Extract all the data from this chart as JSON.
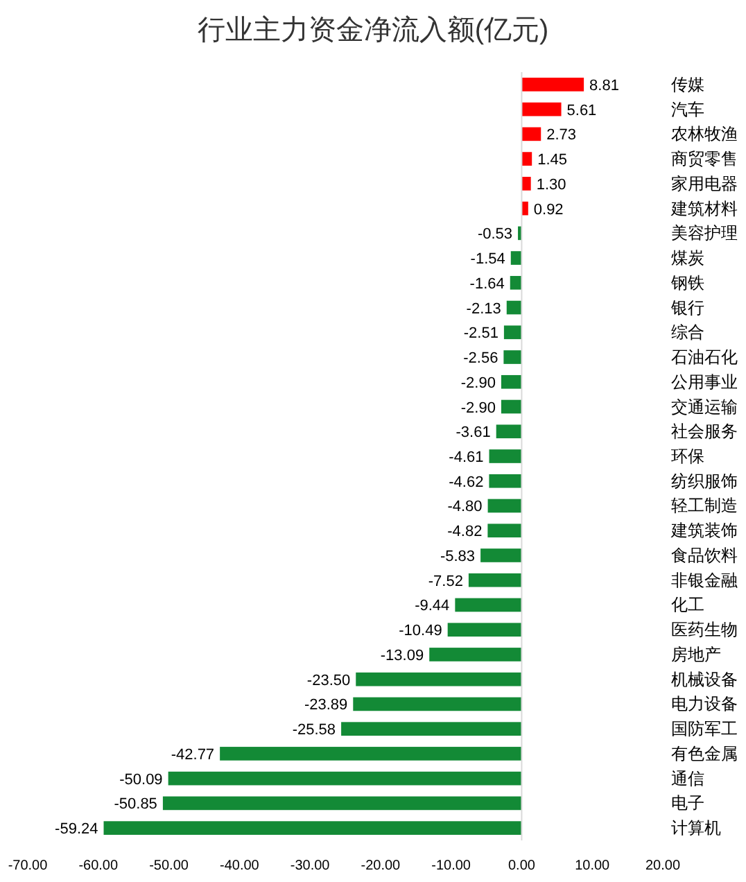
{
  "chart_data": {
    "type": "bar",
    "orientation": "horizontal",
    "title": "行业主力资金净流入额(亿元)",
    "categories": [
      "传媒",
      "汽车",
      "农林牧渔",
      "商贸零售",
      "家用电器",
      "建筑材料",
      "美容护理",
      "煤炭",
      "钢铁",
      "银行",
      "综合",
      "石油石化",
      "公用事业",
      "交通运输",
      "社会服务",
      "环保",
      "纺织服饰",
      "轻工制造",
      "建筑装饰",
      "食品饮料",
      "非银金融",
      "化工",
      "医药生物",
      "房地产",
      "机械设备",
      "电力设备",
      "国防军工",
      "有色金属",
      "通信",
      "电子",
      "计算机"
    ],
    "values": [
      8.81,
      5.61,
      2.73,
      1.45,
      1.3,
      0.92,
      -0.53,
      -1.54,
      -1.64,
      -2.13,
      -2.51,
      -2.56,
      -2.9,
      -2.9,
      -3.61,
      -4.61,
      -4.62,
      -4.8,
      -4.82,
      -5.83,
      -7.52,
      -9.44,
      -10.49,
      -13.09,
      -23.5,
      -23.89,
      -25.58,
      -42.77,
      -50.09,
      -50.85,
      -59.24
    ],
    "value_labels": [
      "8.81",
      "5.61",
      "2.73",
      "1.45",
      "1.30",
      "0.92",
      "-0.53",
      "-1.54",
      "-1.64",
      "-2.13",
      "-2.51",
      "-2.56",
      "-2.90",
      "-2.90",
      "-3.61",
      "-4.61",
      "-4.62",
      "-4.80",
      "-4.82",
      "-5.83",
      "-7.52",
      "-9.44",
      "-10.49",
      "-13.09",
      "-23.50",
      "-23.89",
      "-25.58",
      "-42.77",
      "-50.09",
      "-50.85",
      "-59.24"
    ],
    "colors": [
      "#ff0000",
      "#ff0000",
      "#ff0000",
      "#ff0000",
      "#ff0000",
      "#ff0000",
      "#138a36",
      "#138a36",
      "#138a36",
      "#138a36",
      "#138a36",
      "#138a36",
      "#138a36",
      "#138a36",
      "#138a36",
      "#138a36",
      "#138a36",
      "#138a36",
      "#138a36",
      "#138a36",
      "#138a36",
      "#138a36",
      "#138a36",
      "#138a36",
      "#138a36",
      "#138a36",
      "#138a36",
      "#138a36",
      "#138a36",
      "#138a36",
      "#138a36"
    ],
    "xlim": [
      -70,
      20
    ],
    "xticks": [
      {
        "value": -70,
        "label": "-70.00"
      },
      {
        "value": -60,
        "label": "-60.00"
      },
      {
        "value": -50,
        "label": "-50.00"
      },
      {
        "value": -40,
        "label": "-40.00"
      },
      {
        "value": -30,
        "label": "-30.00"
      },
      {
        "value": -20,
        "label": "-20.00"
      },
      {
        "value": -10,
        "label": "-10.00"
      },
      {
        "value": 0,
        "label": "0.00"
      },
      {
        "value": 10,
        "label": "10.00"
      },
      {
        "value": 20,
        "label": "20.00"
      }
    ]
  }
}
